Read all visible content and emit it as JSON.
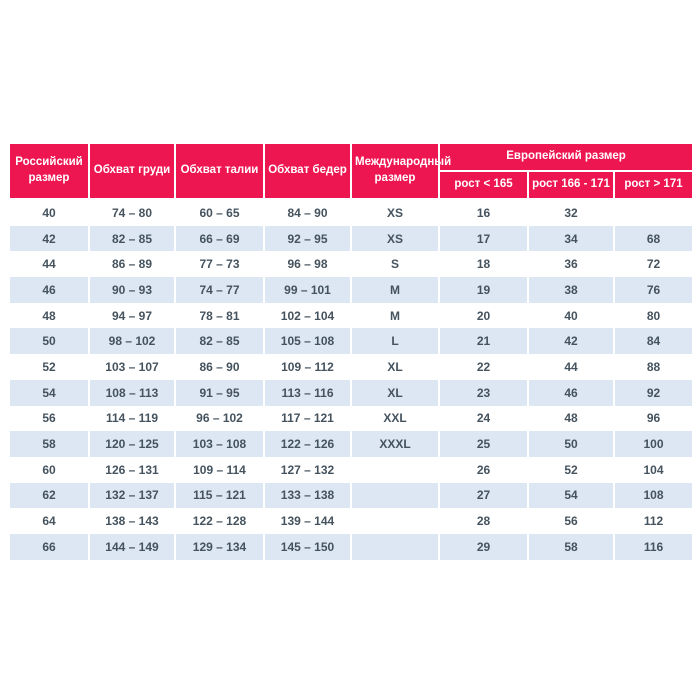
{
  "chart_data": {
    "type": "table",
    "title": "",
    "header": {
      "russian_size": "Российский размер",
      "chest": "Обхват груди",
      "waist": "Обхват талии",
      "hips": "Обхват бедер",
      "international_size": "Международный размер",
      "european_size_group": "Европейский размер",
      "height_lt_165": "рост < 165",
      "height_166_171": "рост 166 - 171",
      "height_gt_171": "рост > 171"
    },
    "row_keys": [
      "ru",
      "chest",
      "waist",
      "hips",
      "intl",
      "h_lt_165",
      "h_166_171",
      "h_gt_171"
    ],
    "rows": [
      {
        "ru": "40",
        "chest": "74 – 80",
        "waist": "60 – 65",
        "hips": "84 – 90",
        "intl": "XS",
        "h_lt_165": "16",
        "h_166_171": "32",
        "h_gt_171": ""
      },
      {
        "ru": "42",
        "chest": "82 – 85",
        "waist": "66 – 69",
        "hips": "92 – 95",
        "intl": "XS",
        "h_lt_165": "17",
        "h_166_171": "34",
        "h_gt_171": "68"
      },
      {
        "ru": "44",
        "chest": "86 – 89",
        "waist": "77 – 73",
        "hips": "96 – 98",
        "intl": "S",
        "h_lt_165": "18",
        "h_166_171": "36",
        "h_gt_171": "72"
      },
      {
        "ru": "46",
        "chest": "90 – 93",
        "waist": "74 – 77",
        "hips": "99 – 101",
        "intl": "M",
        "h_lt_165": "19",
        "h_166_171": "38",
        "h_gt_171": "76"
      },
      {
        "ru": "48",
        "chest": "94 – 97",
        "waist": "78 – 81",
        "hips": "102 – 104",
        "intl": "M",
        "h_lt_165": "20",
        "h_166_171": "40",
        "h_gt_171": "80"
      },
      {
        "ru": "50",
        "chest": "98 – 102",
        "waist": "82 – 85",
        "hips": "105 – 108",
        "intl": "L",
        "h_lt_165": "21",
        "h_166_171": "42",
        "h_gt_171": "84"
      },
      {
        "ru": "52",
        "chest": "103 – 107",
        "waist": "86 – 90",
        "hips": "109 – 112",
        "intl": "XL",
        "h_lt_165": "22",
        "h_166_171": "44",
        "h_gt_171": "88"
      },
      {
        "ru": "54",
        "chest": "108 – 113",
        "waist": "91 – 95",
        "hips": "113 – 116",
        "intl": "XL",
        "h_lt_165": "23",
        "h_166_171": "46",
        "h_gt_171": "92"
      },
      {
        "ru": "56",
        "chest": "114 – 119",
        "waist": "96 – 102",
        "hips": "117 – 121",
        "intl": "XXL",
        "h_lt_165": "24",
        "h_166_171": "48",
        "h_gt_171": "96"
      },
      {
        "ru": "58",
        "chest": "120 – 125",
        "waist": "103 – 108",
        "hips": "122 – 126",
        "intl": "XXXL",
        "h_lt_165": "25",
        "h_166_171": "50",
        "h_gt_171": "100"
      },
      {
        "ru": "60",
        "chest": "126 – 131",
        "waist": "109 – 114",
        "hips": "127 – 132",
        "intl": "",
        "h_lt_165": "26",
        "h_166_171": "52",
        "h_gt_171": "104"
      },
      {
        "ru": "62",
        "chest": "132 – 137",
        "waist": "115 – 121",
        "hips": "133 – 138",
        "intl": "",
        "h_lt_165": "27",
        "h_166_171": "54",
        "h_gt_171": "108"
      },
      {
        "ru": "64",
        "chest": "138 – 143",
        "waist": "122 – 128",
        "hips": "139 – 144",
        "intl": "",
        "h_lt_165": "28",
        "h_166_171": "56",
        "h_gt_171": "112"
      },
      {
        "ru": "66",
        "chest": "144 – 149",
        "waist": "129 – 134",
        "hips": "145 – 150",
        "intl": "",
        "h_lt_165": "29",
        "h_166_171": "58",
        "h_gt_171": "116"
      }
    ]
  },
  "colors": {
    "page_bg": "#FFFFFF",
    "header_bg": "#ED1651",
    "header_text": "#FFFFFF",
    "row_bg": "#FFFFFF",
    "row_alt_bg": "#DCE7F3",
    "body_text": "#45535E"
  }
}
